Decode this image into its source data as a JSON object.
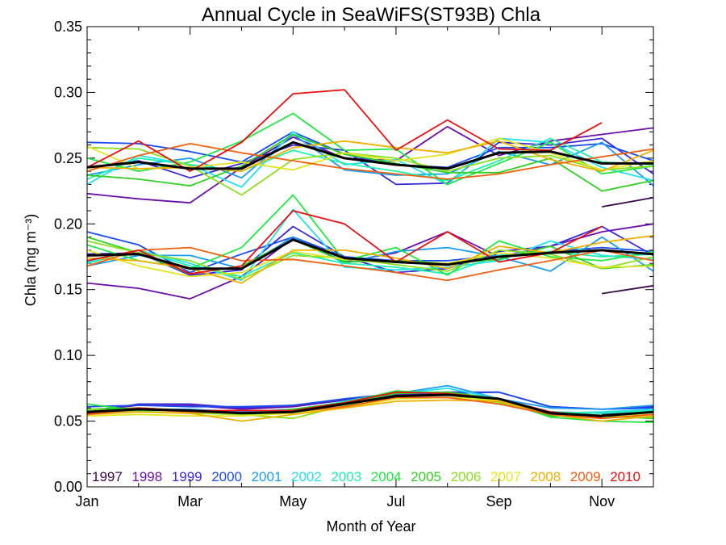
{
  "chart_data": {
    "type": "line",
    "title": "Annual Cycle in SeaWiFS(ST93B) Chla",
    "xlabel": "Month of Year",
    "ylabel": "Chla (mg m⁻³)",
    "x": [
      1,
      2,
      3,
      4,
      5,
      6,
      7,
      8,
      9,
      10,
      11,
      12
    ],
    "xlim": [
      1,
      12
    ],
    "ylim": [
      0.0,
      0.35
    ],
    "xticks": [
      {
        "value": 1,
        "label": "Jan"
      },
      {
        "value": 3,
        "label": "Mar"
      },
      {
        "value": 5,
        "label": "May"
      },
      {
        "value": 7,
        "label": "Jul"
      },
      {
        "value": 9,
        "label": "Sep"
      },
      {
        "value": 11,
        "label": "Nov"
      }
    ],
    "yticks": [
      {
        "value": 0.0,
        "label": "0.00"
      },
      {
        "value": 0.05,
        "label": "0.05"
      },
      {
        "value": 0.1,
        "label": "0.10"
      },
      {
        "value": 0.15,
        "label": "0.15"
      },
      {
        "value": 0.2,
        "label": "0.20"
      },
      {
        "value": 0.25,
        "label": "0.25"
      },
      {
        "value": 0.3,
        "label": "0.30"
      },
      {
        "value": 0.35,
        "label": "0.35"
      }
    ],
    "legend_position": "bottom",
    "series": [
      {
        "name": "1997",
        "color": "#3c0a4c",
        "upper": [
          null,
          null,
          null,
          null,
          null,
          null,
          null,
          null,
          null,
          null,
          0.213,
          0.22
        ],
        "median": [
          null,
          null,
          null,
          null,
          null,
          null,
          null,
          null,
          null,
          null,
          0.147,
          0.153
        ],
        "lower": [
          null,
          null,
          null,
          null,
          null,
          null,
          null,
          null,
          null,
          null,
          0.055,
          0.057
        ]
      },
      {
        "name": "1998",
        "color": "#6a10a8",
        "upper": [
          0.223,
          0.219,
          0.216,
          0.243,
          0.266,
          0.25,
          0.248,
          0.274,
          0.252,
          0.263,
          0.268,
          0.273
        ],
        "median": [
          0.155,
          0.151,
          0.143,
          0.16,
          0.189,
          0.171,
          0.178,
          0.194,
          0.175,
          0.183,
          0.194,
          0.2
        ],
        "lower": [
          0.058,
          0.062,
          0.062,
          0.059,
          0.061,
          0.066,
          0.07,
          0.071,
          0.067,
          0.057,
          0.056,
          0.057
        ]
      },
      {
        "name": "1999",
        "color": "#3a2ad8",
        "upper": [
          0.243,
          0.248,
          0.235,
          0.246,
          0.26,
          0.256,
          0.23,
          0.231,
          0.262,
          0.26,
          0.265,
          0.238
        ],
        "median": [
          0.177,
          0.178,
          0.161,
          0.165,
          0.198,
          0.175,
          0.163,
          0.166,
          0.179,
          0.183,
          0.198,
          0.176
        ],
        "lower": [
          0.057,
          0.063,
          0.063,
          0.06,
          0.062,
          0.066,
          0.071,
          0.072,
          0.072,
          0.061,
          0.059,
          0.061
        ]
      },
      {
        "name": "2000",
        "color": "#1a4cf0",
        "upper": [
          0.262,
          0.261,
          0.255,
          0.247,
          0.27,
          0.253,
          0.245,
          0.243,
          0.258,
          0.258,
          0.261,
          0.248
        ],
        "median": [
          0.194,
          0.184,
          0.163,
          0.177,
          0.19,
          0.175,
          0.172,
          0.172,
          0.176,
          0.179,
          0.182,
          0.179
        ],
        "lower": [
          0.061,
          0.062,
          0.061,
          0.061,
          0.062,
          0.067,
          0.071,
          0.071,
          0.072,
          0.061,
          0.059,
          0.06
        ]
      },
      {
        "name": "2001",
        "color": "#1a9cf5",
        "upper": [
          0.237,
          0.245,
          0.25,
          0.235,
          0.268,
          0.241,
          0.237,
          0.238,
          0.255,
          0.245,
          0.262,
          0.229
        ],
        "median": [
          0.168,
          0.176,
          0.176,
          0.166,
          0.19,
          0.17,
          0.179,
          0.182,
          0.175,
          0.164,
          0.19,
          0.164
        ],
        "lower": [
          0.057,
          0.059,
          0.059,
          0.057,
          0.059,
          0.064,
          0.071,
          0.077,
          0.067,
          0.06,
          0.059,
          0.062
        ]
      },
      {
        "name": "2002",
        "color": "#22e0f0",
        "upper": [
          0.23,
          0.252,
          0.245,
          0.228,
          0.27,
          0.245,
          0.249,
          0.23,
          0.265,
          0.262,
          0.243,
          0.233
        ],
        "median": [
          0.171,
          0.18,
          0.17,
          0.157,
          0.211,
          0.167,
          0.165,
          0.167,
          0.172,
          0.187,
          0.176,
          0.173
        ],
        "lower": [
          0.055,
          0.058,
          0.058,
          0.056,
          0.059,
          0.064,
          0.071,
          0.075,
          0.067,
          0.056,
          0.057,
          0.059
        ]
      },
      {
        "name": "2003",
        "color": "#20f0b0",
        "upper": [
          0.234,
          0.25,
          0.245,
          0.24,
          0.256,
          0.246,
          0.24,
          0.233,
          0.248,
          0.265,
          0.247,
          0.245
        ],
        "median": [
          0.17,
          0.18,
          0.168,
          0.16,
          0.178,
          0.17,
          0.167,
          0.162,
          0.176,
          0.179,
          0.175,
          0.177
        ],
        "lower": [
          0.058,
          0.059,
          0.058,
          0.056,
          0.058,
          0.065,
          0.072,
          0.072,
          0.067,
          0.057,
          0.056,
          0.058
        ]
      },
      {
        "name": "2004",
        "color": "#20e840",
        "upper": [
          0.25,
          0.24,
          0.247,
          0.263,
          0.284,
          0.256,
          0.257,
          0.23,
          0.246,
          0.262,
          0.238,
          0.244
        ],
        "median": [
          0.184,
          0.172,
          0.166,
          0.182,
          0.222,
          0.172,
          0.182,
          0.161,
          0.187,
          0.175,
          0.172,
          0.179
        ],
        "lower": [
          0.063,
          0.058,
          0.058,
          0.055,
          0.057,
          0.064,
          0.073,
          0.071,
          0.066,
          0.053,
          0.05,
          0.049
        ]
      },
      {
        "name": "2005",
        "color": "#30d020",
        "upper": [
          0.237,
          0.234,
          0.229,
          0.244,
          0.268,
          0.253,
          0.246,
          0.239,
          0.239,
          0.25,
          0.225,
          0.233
        ],
        "median": [
          0.19,
          0.178,
          0.162,
          0.168,
          0.188,
          0.171,
          0.172,
          0.17,
          0.173,
          0.183,
          0.166,
          0.169
        ],
        "lower": [
          0.059,
          0.06,
          0.058,
          0.056,
          0.059,
          0.064,
          0.071,
          0.072,
          0.067,
          0.054,
          0.054,
          0.052
        ]
      },
      {
        "name": "2006",
        "color": "#8ce020",
        "upper": [
          0.258,
          0.257,
          0.244,
          0.222,
          0.249,
          0.254,
          0.25,
          0.24,
          0.25,
          0.252,
          0.241,
          0.244
        ],
        "median": [
          0.187,
          0.178,
          0.172,
          0.158,
          0.176,
          0.174,
          0.169,
          0.164,
          0.18,
          0.177,
          0.166,
          0.175
        ],
        "lower": [
          0.059,
          0.057,
          0.056,
          0.055,
          0.052,
          0.062,
          0.069,
          0.07,
          0.064,
          0.055,
          0.053,
          0.053
        ]
      },
      {
        "name": "2007",
        "color": "#e4e420",
        "upper": [
          0.259,
          0.242,
          0.243,
          0.247,
          0.241,
          0.254,
          0.248,
          0.253,
          0.265,
          0.254,
          0.241,
          0.248
        ],
        "median": [
          0.18,
          0.168,
          0.16,
          0.163,
          0.179,
          0.173,
          0.171,
          0.17,
          0.178,
          0.174,
          0.167,
          0.168
        ],
        "lower": [
          0.054,
          0.055,
          0.054,
          0.054,
          0.056,
          0.06,
          0.067,
          0.068,
          0.066,
          0.056,
          0.054,
          0.055
        ]
      },
      {
        "name": "2008",
        "color": "#f0b000",
        "upper": [
          0.243,
          0.242,
          0.243,
          0.24,
          0.258,
          0.263,
          0.258,
          0.254,
          0.263,
          0.249,
          0.24,
          0.256
        ],
        "median": [
          0.174,
          0.172,
          0.166,
          0.155,
          0.18,
          0.18,
          0.174,
          0.166,
          0.183,
          0.178,
          0.186,
          0.191
        ],
        "lower": [
          0.055,
          0.057,
          0.056,
          0.05,
          0.055,
          0.06,
          0.065,
          0.066,
          0.065,
          0.055,
          0.05,
          0.054
        ]
      },
      {
        "name": "2009",
        "color": "#f06010",
        "upper": [
          0.24,
          0.252,
          0.261,
          0.254,
          0.248,
          0.242,
          0.238,
          0.234,
          0.238,
          0.245,
          0.251,
          0.257
        ],
        "median": [
          0.168,
          0.18,
          0.182,
          0.172,
          0.173,
          0.168,
          0.163,
          0.157,
          0.165,
          0.172,
          0.18,
          0.172
        ],
        "lower": [
          0.055,
          0.059,
          0.057,
          0.056,
          0.057,
          0.061,
          0.068,
          0.068,
          0.063,
          0.055,
          0.052,
          0.055
        ]
      },
      {
        "name": "2010",
        "color": "#e81010",
        "upper": [
          0.243,
          0.263,
          0.24,
          0.262,
          0.299,
          0.302,
          0.256,
          0.279,
          0.257,
          0.256,
          0.277,
          null
        ],
        "median": [
          0.172,
          0.18,
          0.162,
          0.168,
          0.21,
          0.2,
          0.171,
          0.194,
          0.171,
          0.178,
          0.198,
          null
        ],
        "lower": [
          0.056,
          0.06,
          0.058,
          0.058,
          0.058,
          0.064,
          0.072,
          0.071,
          0.067,
          0.057,
          0.053,
          null
        ]
      }
    ],
    "mean": {
      "color": "#000000",
      "upper": [
        0.243,
        0.247,
        0.242,
        0.242,
        0.262,
        0.25,
        0.245,
        0.242,
        0.254,
        0.255,
        0.246,
        0.246
      ],
      "median": [
        0.176,
        0.177,
        0.166,
        0.166,
        0.188,
        0.174,
        0.171,
        0.169,
        0.175,
        0.178,
        0.18,
        0.177
      ],
      "lower": [
        0.057,
        0.059,
        0.058,
        0.056,
        0.057,
        0.063,
        0.069,
        0.07,
        0.067,
        0.056,
        0.054,
        0.057
      ]
    }
  }
}
